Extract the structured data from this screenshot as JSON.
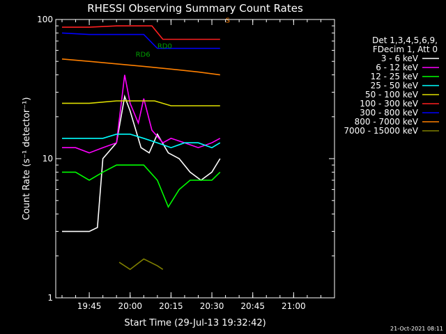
{
  "chart_data": {
    "type": "line",
    "title": "RHESSI Observing Summary Count Rates",
    "xlabel": "Start Time (29-Jul-13 19:32:42)",
    "ylabel": "Count Rate (s⁻¹ detector⁻¹)",
    "y_scale": "log",
    "ylim": [
      1,
      100
    ],
    "xlim": [
      "19:32:42",
      "21:15:00"
    ],
    "x_ticks": [
      "19:45",
      "20:00",
      "20:15",
      "20:30",
      "20:45",
      "21:00"
    ],
    "y_ticks": [
      "1",
      "10",
      "100"
    ],
    "grid": false,
    "legend_position": "right",
    "legend_header": [
      "Det 1,3,4,5,6,9,",
      "FDecim 1, Att 0"
    ],
    "footer_date": "21-Oct-2021 08:11",
    "annotations": [
      {
        "text": "RD0",
        "x": "20:10",
        "y": 62,
        "color": "#00a000"
      },
      {
        "text": "RD6",
        "x": "20:02",
        "y": 54,
        "color": "#00a000"
      },
      {
        "text": "S",
        "x": "20:35",
        "y": 95,
        "color": "#ff8000"
      }
    ],
    "series": [
      {
        "name": "3 - 6 keV",
        "color": "#ffffff",
        "x": [
          "19:35",
          "19:45",
          "19:48",
          "19:50",
          "19:55",
          "19:58",
          "20:00",
          "20:04",
          "20:07",
          "20:10",
          "20:14",
          "20:18",
          "20:22",
          "20:26",
          "20:30",
          "20:33"
        ],
        "values": [
          3.0,
          3.0,
          3.2,
          10,
          13,
          28,
          22,
          12,
          11,
          15,
          11,
          10,
          8,
          7,
          8,
          10
        ]
      },
      {
        "name": "6 - 12 keV",
        "color": "#ff00ff",
        "x": [
          "19:35",
          "19:40",
          "19:45",
          "19:50",
          "19:55",
          "19:58",
          "20:00",
          "20:03",
          "20:05",
          "20:08",
          "20:12",
          "20:15",
          "20:20",
          "20:25",
          "20:30",
          "20:33"
        ],
        "values": [
          12,
          12,
          11,
          12,
          13,
          40,
          25,
          18,
          27,
          16,
          13,
          14,
          13,
          12,
          13,
          14
        ]
      },
      {
        "name": "12 - 25 keV",
        "color": "#00ff00",
        "x": [
          "19:35",
          "19:40",
          "19:45",
          "19:50",
          "19:55",
          "20:00",
          "20:05",
          "20:10",
          "20:14",
          "20:18",
          "20:22",
          "20:26",
          "20:30",
          "20:33"
        ],
        "values": [
          8,
          8,
          7,
          8,
          9,
          9,
          9,
          7,
          4.5,
          6,
          7,
          7,
          7,
          8
        ]
      },
      {
        "name": "25 - 50 keV",
        "color": "#00ffff",
        "x": [
          "19:35",
          "19:40",
          "19:45",
          "19:50",
          "19:55",
          "20:00",
          "20:05",
          "20:10",
          "20:15",
          "20:20",
          "20:25",
          "20:30",
          "20:33"
        ],
        "values": [
          14,
          14,
          14,
          14,
          15,
          15,
          14,
          13,
          12,
          13,
          13,
          12,
          13
        ]
      },
      {
        "name": "50 - 100 keV",
        "color": "#e0e000",
        "x": [
          "19:35",
          "19:45",
          "19:55",
          "20:05",
          "20:09",
          "20:15",
          "20:25",
          "20:33"
        ],
        "values": [
          25,
          25,
          26,
          26,
          26,
          24,
          24,
          24
        ]
      },
      {
        "name": "100 - 300 keV",
        "color": "#ff2020",
        "x": [
          "19:35",
          "19:45",
          "19:55",
          "20:05",
          "20:08",
          "20:12",
          "20:20",
          "20:28",
          "20:33"
        ],
        "values": [
          88,
          88,
          90,
          90,
          90,
          72,
          72,
          72,
          72
        ]
      },
      {
        "name": "300 - 800 keV",
        "color": "#0000ff",
        "x": [
          "19:35",
          "19:45",
          "19:55",
          "20:05",
          "20:10",
          "20:15",
          "20:25",
          "20:33"
        ],
        "values": [
          80,
          78,
          78,
          78,
          62,
          62,
          62,
          62
        ]
      },
      {
        "name": "800 - 7000 keV",
        "color": "#ff8000",
        "x": [
          "19:35",
          "19:45",
          "19:55",
          "20:05",
          "20:15",
          "20:25",
          "20:33"
        ],
        "values": [
          52,
          50,
          48,
          46,
          44,
          42,
          40
        ]
      },
      {
        "name": "7000 - 15000 keV",
        "color": "#808000",
        "x": [
          "19:56",
          "20:00",
          "20:05",
          "20:10",
          "20:12"
        ],
        "values": [
          1.8,
          1.6,
          1.9,
          1.7,
          1.6
        ]
      }
    ]
  }
}
